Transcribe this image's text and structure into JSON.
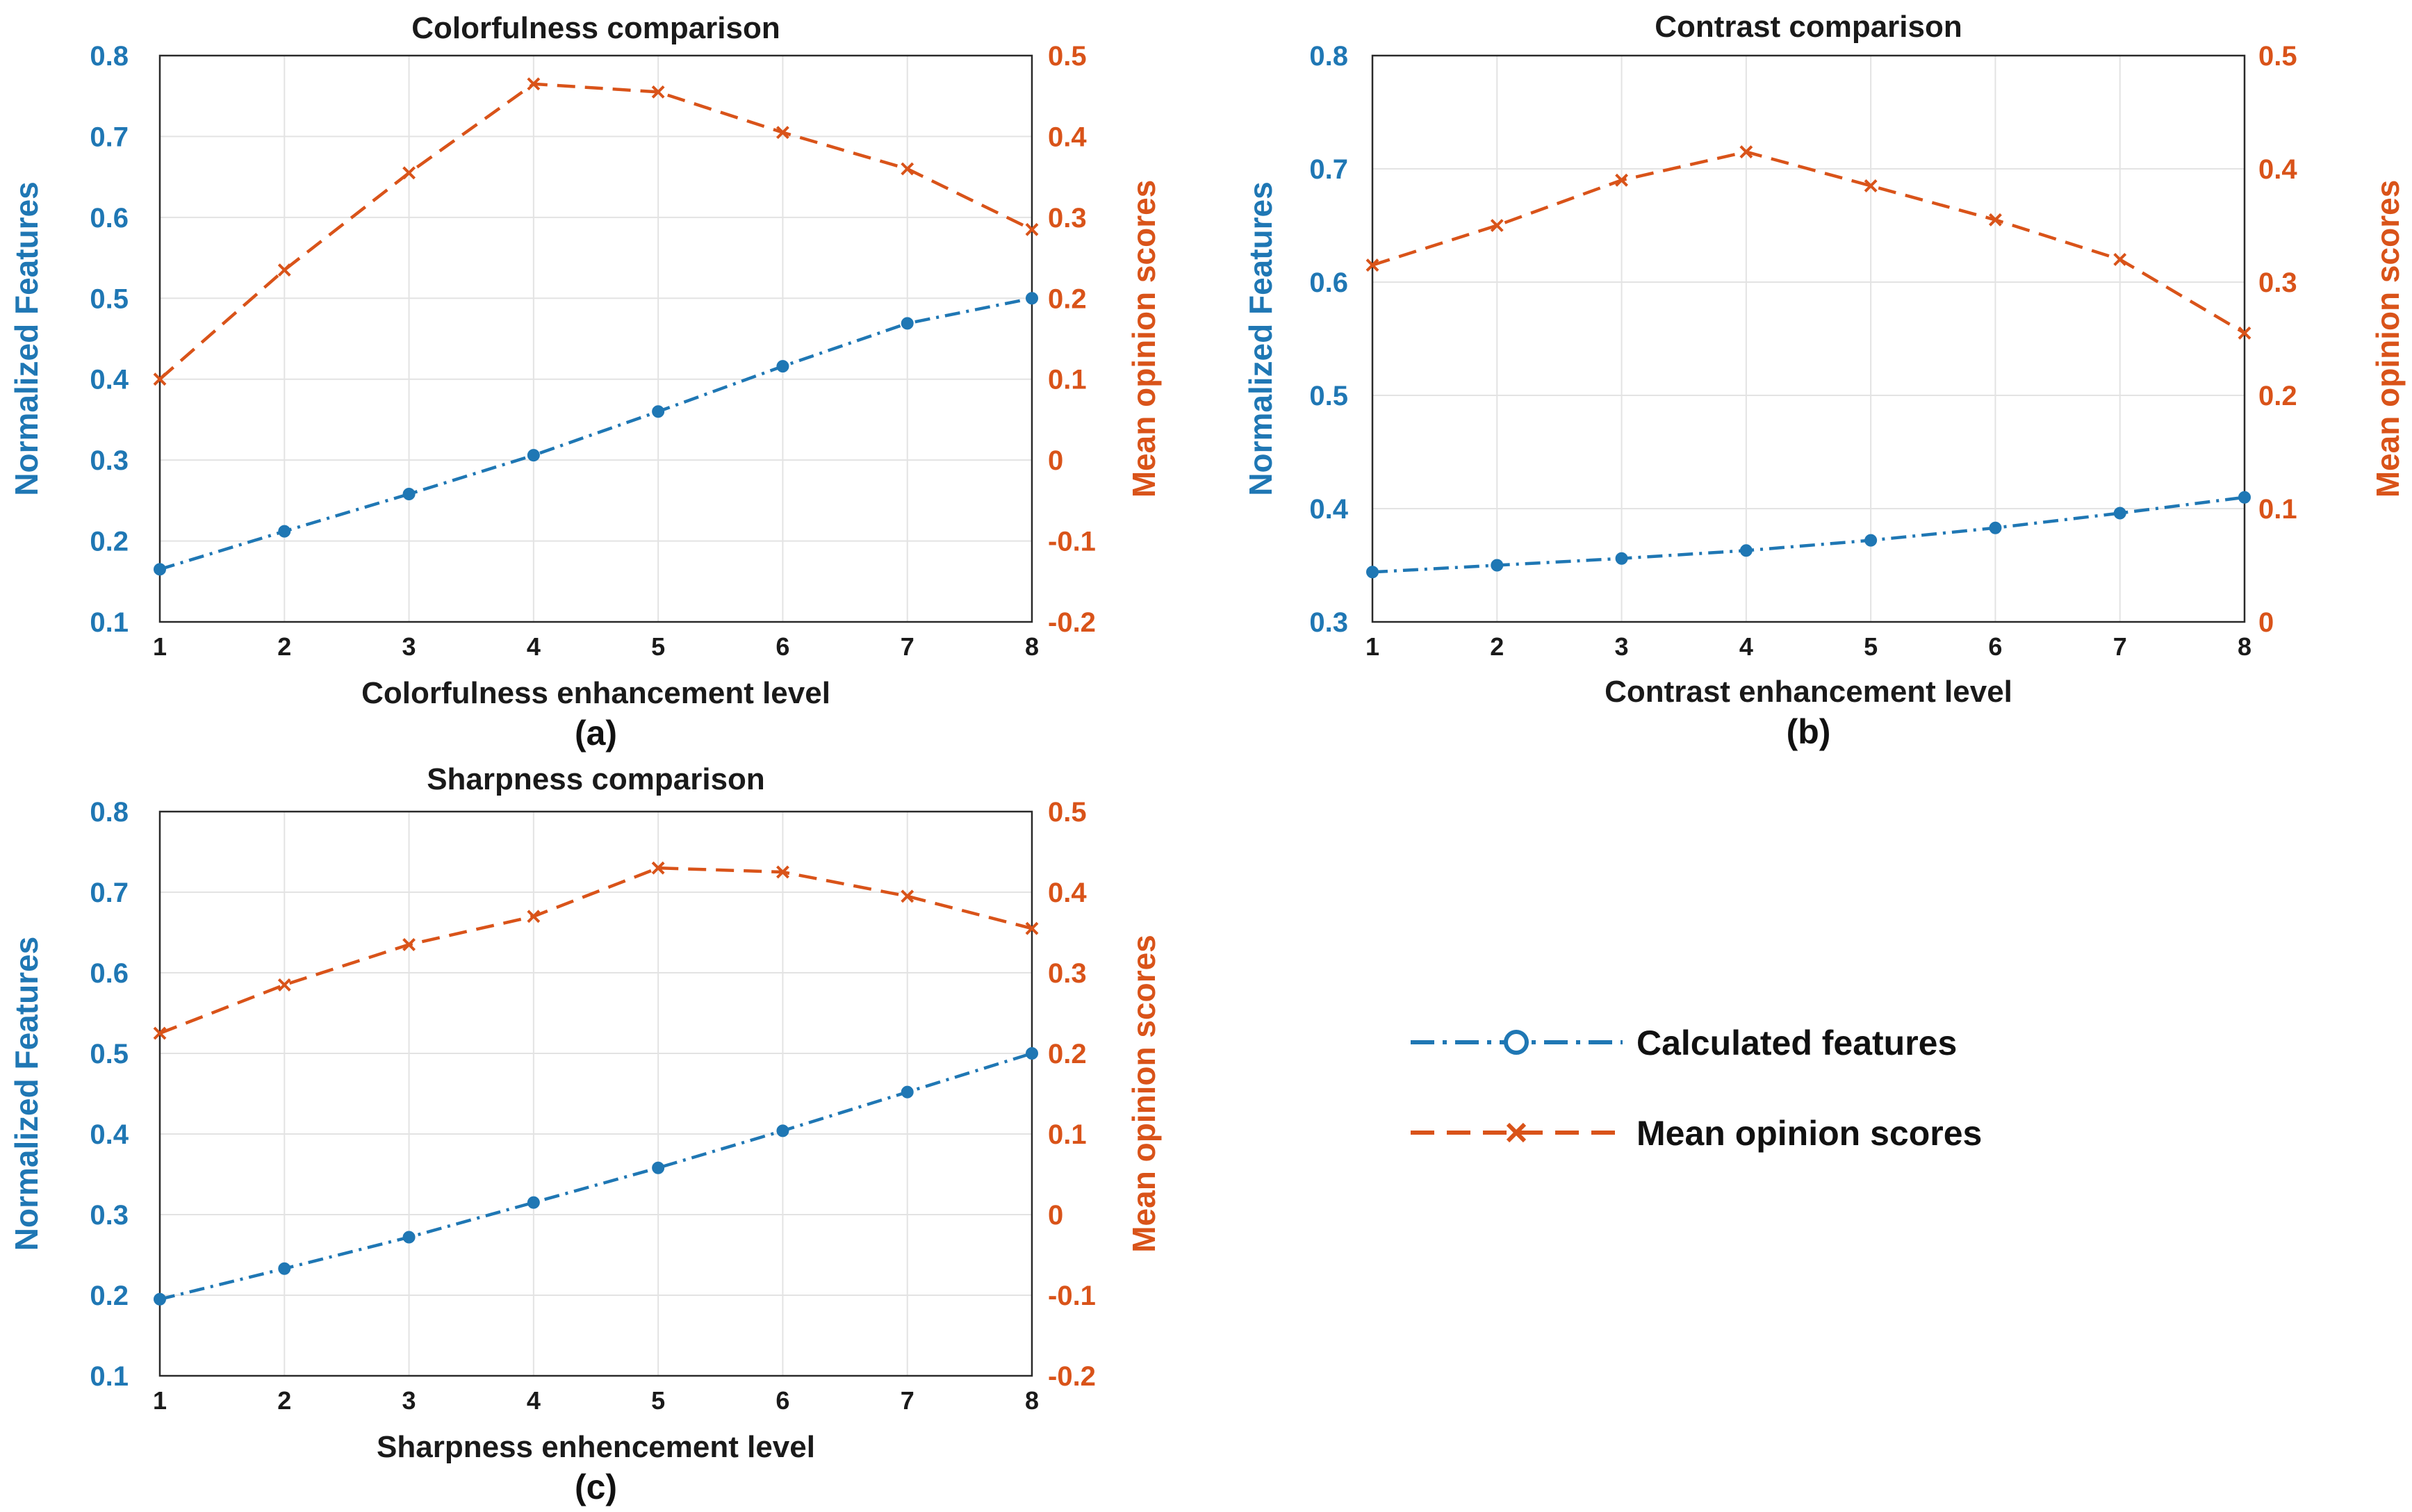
{
  "colors": {
    "features": "#1f77b4",
    "mos": "#d95319",
    "text": "#1a1a1a"
  },
  "legend": {
    "items": [
      {
        "label": "Calculated  features",
        "series": "features",
        "marker": "o",
        "line": "dashdot"
      },
      {
        "label": "Mean opinion scores",
        "series": "mos",
        "marker": "x",
        "line": "dashed"
      }
    ]
  },
  "chart_data": [
    {
      "type": "line",
      "panel_label": "(a)",
      "title": "Colorfulness comparison",
      "xlabel": "Colorfulness enhancement level",
      "ylabel_left": "Normalized Features",
      "ylabel_right": "Mean opinion scores",
      "x": [
        1,
        2,
        3,
        4,
        5,
        6,
        7,
        8
      ],
      "xticks": [
        "1",
        "2",
        "3",
        "4",
        "5",
        "6",
        "7",
        "8"
      ],
      "xlim": [
        1,
        8
      ],
      "ylim_left": [
        0.1,
        0.8
      ],
      "yticks_left": [
        "0.1",
        "0.2",
        "0.3",
        "0.4",
        "0.5",
        "0.6",
        "0.7",
        "0.8"
      ],
      "ylim_right": [
        -0.2,
        0.5
      ],
      "yticks_right": [
        "-0.2",
        "-0.1",
        "0",
        "0.1",
        "0.2",
        "0.3",
        "0.4",
        "0.5"
      ],
      "grid": true,
      "series": [
        {
          "name": "Calculated features",
          "axis": "left",
          "values": [
            0.165,
            0.212,
            0.258,
            0.306,
            0.36,
            0.416,
            0.469,
            0.5
          ]
        },
        {
          "name": "Mean opinion scores",
          "axis": "right",
          "values": [
            0.1,
            0.235,
            0.355,
            0.465,
            0.455,
            0.405,
            0.36,
            0.285
          ]
        }
      ]
    },
    {
      "type": "line",
      "panel_label": "(b)",
      "title": "Contrast comparison",
      "xlabel": "Contrast enhancement level",
      "ylabel_left": "Normalized Features",
      "ylabel_right": "Mean opinion scores",
      "x": [
        1,
        2,
        3,
        4,
        5,
        6,
        7,
        8
      ],
      "xticks": [
        "1",
        "2",
        "3",
        "4",
        "5",
        "6",
        "7",
        "8"
      ],
      "xlim": [
        1,
        8
      ],
      "ylim_left": [
        0.3,
        0.8
      ],
      "yticks_left": [
        "0.3",
        "0.4",
        "0.5",
        "0.6",
        "0.7",
        "0.8"
      ],
      "ylim_right": [
        0,
        0.5
      ],
      "yticks_right": [
        "0",
        "0.1",
        "0.2",
        "0.3",
        "0.4",
        "0.5"
      ],
      "grid": true,
      "series": [
        {
          "name": "Calculated features",
          "axis": "left",
          "values": [
            0.344,
            0.35,
            0.356,
            0.363,
            0.372,
            0.383,
            0.396,
            0.41
          ]
        },
        {
          "name": "Mean opinion scores",
          "axis": "right",
          "values": [
            0.315,
            0.35,
            0.39,
            0.415,
            0.385,
            0.355,
            0.32,
            0.255
          ]
        }
      ]
    },
    {
      "type": "line",
      "panel_label": "(c)",
      "title": "Sharpness comparison",
      "xlabel": "Sharpness enhencement level",
      "ylabel_left": "Normalized Features",
      "ylabel_right": "Mean opinion scores",
      "x": [
        1,
        2,
        3,
        4,
        5,
        6,
        7,
        8
      ],
      "xticks": [
        "1",
        "2",
        "3",
        "4",
        "5",
        "6",
        "7",
        "8"
      ],
      "xlim": [
        1,
        8
      ],
      "ylim_left": [
        0.1,
        0.8
      ],
      "yticks_left": [
        "0.1",
        "0.2",
        "0.3",
        "0.4",
        "0.5",
        "0.6",
        "0.7",
        "0.8"
      ],
      "ylim_right": [
        -0.2,
        0.5
      ],
      "yticks_right": [
        "-0.2",
        "-0.1",
        "0",
        "0.1",
        "0.2",
        "0.3",
        "0.4",
        "0.5"
      ],
      "grid": true,
      "series": [
        {
          "name": "Calculated features",
          "axis": "left",
          "values": [
            0.195,
            0.233,
            0.272,
            0.315,
            0.358,
            0.404,
            0.452,
            0.5
          ]
        },
        {
          "name": "Mean opinion scores",
          "axis": "right",
          "values": [
            0.225,
            0.285,
            0.335,
            0.37,
            0.43,
            0.425,
            0.395,
            0.355
          ]
        }
      ]
    }
  ]
}
